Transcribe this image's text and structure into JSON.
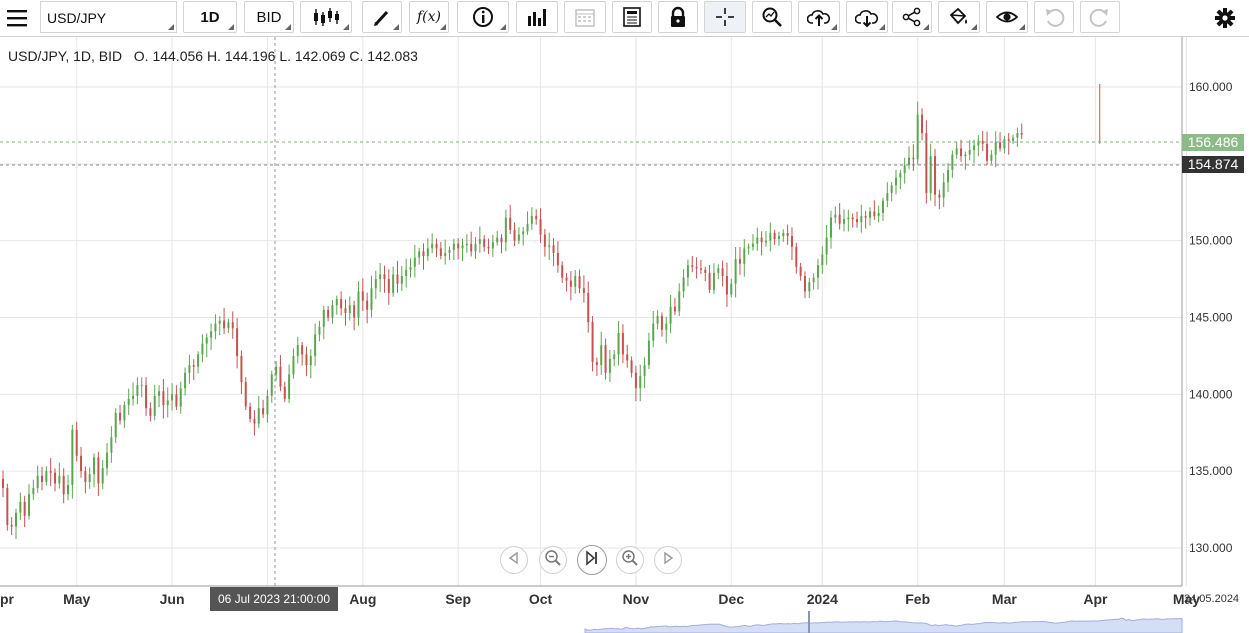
{
  "toolbar": {
    "symbol": "USD/JPY",
    "interval": "1D",
    "price_type": "BID",
    "fx_label": "f(x)",
    "icons": [
      "menu-icon",
      "candles-icon",
      "pencil-icon",
      "function-icon",
      "info-icon",
      "volume-bars-icon",
      "calendar-icon",
      "news-icon",
      "lock-icon",
      "crosshair-icon",
      "zoom-icon",
      "upload-icon",
      "download-icon",
      "share-icon",
      "bucket-icon",
      "eye-icon",
      "undo-icon",
      "redo-icon",
      "gear-icon"
    ]
  },
  "legend": {
    "text": "USD/JPY, 1D, BID   O. 144.056 H. 144.196 L. 142.069 C. 142.083"
  },
  "price_tags": {
    "high_line": "156.486",
    "last_price": "154.874"
  },
  "crosshair_date": "06 Jul 2023 21:00:00",
  "axis_right_date": "24.05.2024",
  "colors": {
    "up": "#5aa64e",
    "down": "#c65250",
    "grid": "#e6e6e6",
    "high_tag": "#8dbb87",
    "last_tag": "#333333"
  },
  "chart_data": {
    "type": "candlestick",
    "instrument": "USD/JPY",
    "ylim": [
      127.5,
      163
    ],
    "yticks": [
      "130.000",
      "135.000",
      "140.000",
      "145.000",
      "150.000",
      "155.000",
      "160.000"
    ],
    "yvalues": [
      130,
      135,
      140,
      145,
      150,
      155,
      160
    ],
    "xticks": [
      "pr",
      "May",
      "Jun",
      "Jul",
      "Aug",
      "Sep",
      "Oct",
      "Nov",
      "Dec",
      "2024",
      "Feb",
      "Mar",
      "Apr",
      "May"
    ],
    "xtick_index": [
      -3,
      17,
      39,
      61,
      83,
      105,
      124,
      146,
      168,
      189,
      211,
      231,
      252,
      273
    ],
    "closes": [
      133.9,
      131.5,
      131.4,
      132.3,
      133.0,
      132.1,
      133.5,
      133.9,
      134.7,
      134.3,
      135.0,
      134.9,
      134.2,
      134.7,
      133.5,
      134.1,
      137.7,
      136.0,
      135.0,
      134.3,
      134.8,
      135.9,
      134.2,
      135.2,
      136.2,
      137.2,
      138.8,
      138.3,
      139.3,
      139.7,
      139.9,
      140.6,
      140.6,
      139.1,
      138.6,
      139.9,
      140.2,
      139.3,
      139.6,
      140.0,
      139.2,
      140.4,
      141.4,
      141.9,
      141.8,
      142.6,
      143.3,
      143.7,
      144.1,
      144.6,
      144.8,
      144.3,
      144.7,
      144.3,
      142.5,
      140.8,
      139.2,
      138.4,
      138.1,
      139.1,
      138.7,
      139.9,
      141.3,
      141.8,
      140.5,
      139.7,
      141.3,
      142.5,
      143.2,
      142.6,
      141.9,
      142.5,
      143.9,
      144.4,
      145.5,
      145.0,
      145.8,
      146.2,
      145.6,
      145.3,
      145.8,
      145.0,
      146.7,
      146.1,
      145.5,
      146.9,
      147.5,
      147.8,
      147.5,
      146.6,
      147.8,
      147.2,
      147.7,
      148.1,
      148.3,
      148.9,
      149.3,
      149.0,
      149.5,
      149.8,
      149.5,
      149.0,
      149.2,
      149.4,
      149.8,
      149.5,
      149.7,
      149.8,
      149.3,
      149.8,
      150.1,
      149.6,
      149.5,
      149.9,
      150.2,
      149.9,
      151.5,
      150.7,
      150.0,
      150.4,
      150.6,
      151.1,
      151.6,
      151.4,
      150.4,
      149.6,
      149.7,
      149.2,
      148.4,
      147.6,
      147.4,
      147.0,
      147.7,
      146.9,
      146.6,
      144.7,
      142.1,
      141.9,
      143.2,
      141.4,
      142.3,
      142.6,
      144.0,
      142.6,
      142.2,
      141.4,
      140.4,
      141.2,
      141.9,
      143.5,
      144.6,
      145.1,
      144.2,
      144.6,
      145.7,
      145.4,
      146.7,
      147.6,
      148.4,
      148.3,
      148.2,
      148.1,
      147.9,
      146.8,
      147.9,
      148.2,
      147.7,
      146.5,
      147.2,
      148.8,
      148.5,
      149.5,
      149.6,
      149.8,
      150.2,
      149.9,
      150.0,
      150.5,
      150.1,
      150.3,
      150.5,
      150.3,
      149.6,
      148.3,
      147.7,
      146.7,
      147.3,
      147.6,
      148.4,
      149.1,
      150.2,
      151.5,
      151.7,
      151.1,
      151.4,
      151.5,
      151.4,
      151.2,
      151.6,
      151.5,
      151.9,
      151.6,
      151.8,
      152.6,
      153.1,
      153.6,
      154.1,
      154.4,
      154.9,
      155.4,
      155.3,
      158.2,
      157.0,
      153.1,
      155.5,
      153.0,
      152.8,
      153.8,
      154.6,
      155.6,
      156.0,
      155.5,
      155.6,
      155.9,
      156.2,
      156.5,
      156.3,
      155.2,
      155.6,
      156.4,
      156.0,
      156.6,
      156.5,
      156.7,
      157.0,
      156.9
    ]
  }
}
